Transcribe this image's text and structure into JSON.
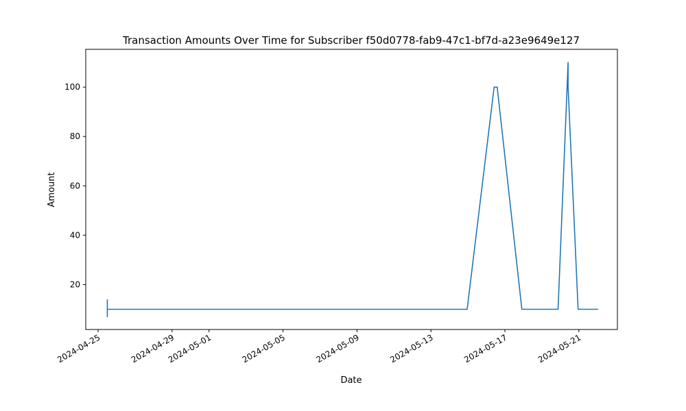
{
  "chart_data": {
    "type": "line",
    "title": "Transaction Amounts Over Time for Subscriber f50d0778-fab9-47c1-bf7d-a23e9649e127",
    "xlabel": "Date",
    "ylabel": "Amount",
    "x_axis_type": "date",
    "xlim": [
      "2024-04-24T08:00",
      "2024-05-23T02:00"
    ],
    "ylim": [
      1.8,
      115.3
    ],
    "x_ticks": [
      "2024-04-25",
      "2024-04-29",
      "2024-05-01",
      "2024-05-05",
      "2024-05-09",
      "2024-05-13",
      "2024-05-17",
      "2024-05-21"
    ],
    "y_ticks": [
      20,
      40,
      60,
      80,
      100
    ],
    "grid": false,
    "legend": "none",
    "series": [
      {
        "color": "#1f77b4",
        "points": [
          {
            "x": "2024-04-25T12:00",
            "y": 13.99
          },
          {
            "x": "2024-04-25T12:00",
            "y": 6.99
          },
          {
            "x": "2024-04-25T12:00",
            "y": 9.99
          },
          {
            "x": "2024-04-27T00:00",
            "y": 9.99
          },
          {
            "x": "2024-05-14T23:00",
            "y": 9.99
          },
          {
            "x": "2024-05-16T10:00",
            "y": 99.99
          },
          {
            "x": "2024-05-16T14:00",
            "y": 99.99
          },
          {
            "x": "2024-05-17T22:00",
            "y": 9.99
          },
          {
            "x": "2024-05-19T21:00",
            "y": 9.99
          },
          {
            "x": "2024-05-20T10:00",
            "y": 109.99
          },
          {
            "x": "2024-05-20T10:00",
            "y": 99.99
          },
          {
            "x": "2024-05-20T23:00",
            "y": 9.99
          },
          {
            "x": "2024-05-22T01:00",
            "y": 9.99
          }
        ]
      }
    ]
  }
}
